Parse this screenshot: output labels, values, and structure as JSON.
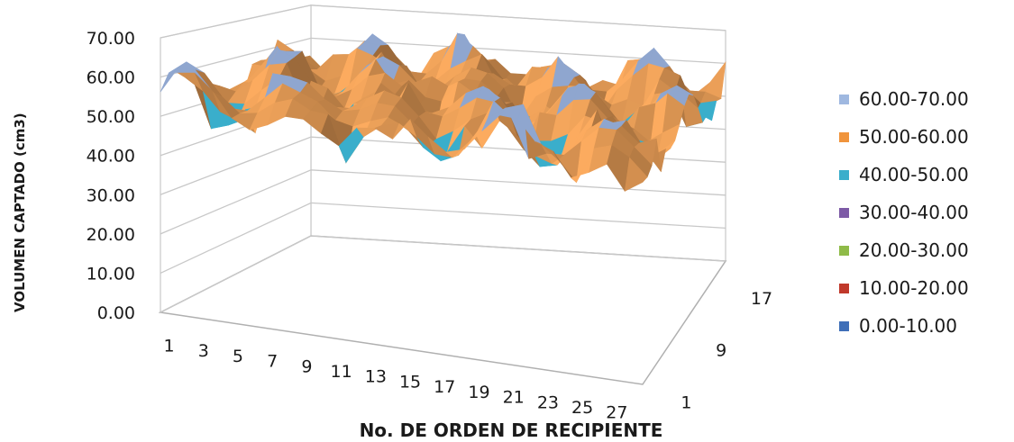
{
  "chart_data": {
    "type": "surface",
    "title": "",
    "zlabel": "VOLUMEN CAPTADO (cm3)",
    "xlabel": "No. DE ORDEN DE RECIPIENTE",
    "ylabel": "",
    "zlim": [
      0,
      70
    ],
    "z_ticks": [
      "0.00",
      "10.00",
      "20.00",
      "30.00",
      "40.00",
      "50.00",
      "60.00",
      "70.00"
    ],
    "x_ticks": [
      "1",
      "3",
      "5",
      "7",
      "9",
      "11",
      "13",
      "15",
      "17",
      "19",
      "21",
      "23",
      "25",
      "27"
    ],
    "y_ticks": [
      "1",
      "9",
      "17"
    ],
    "x_range": [
      1,
      28
    ],
    "y_range": [
      1,
      19
    ],
    "grid": true,
    "legend_position": "right",
    "legend": [
      {
        "label": "60.00-70.00",
        "color": "#9fb8e0"
      },
      {
        "label": "50.00-60.00",
        "color": "#f0943c"
      },
      {
        "label": "40.00-50.00",
        "color": "#3aaecb"
      },
      {
        "label": "30.00-40.00",
        "color": "#7d5aa6"
      },
      {
        "label": "20.00-30.00",
        "color": "#8fbb48"
      },
      {
        "label": "10.00-20.00",
        "color": "#c0392b"
      },
      {
        "label": "0.00-10.00",
        "color": "#3f6fb8"
      }
    ],
    "surface_color": "#f0a35a",
    "peak_color": "#8fa6cf",
    "dip_color": "#3aaecb",
    "z_approx_range": [
      44,
      66
    ]
  }
}
